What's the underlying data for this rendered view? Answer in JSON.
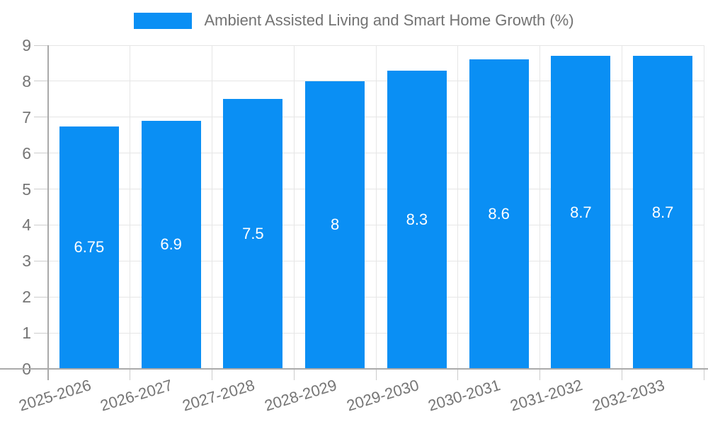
{
  "legend": {
    "label": "Ambient Assisted Living and Smart Home Growth (%)"
  },
  "chart_data": {
    "type": "bar",
    "title": "Ambient Assisted Living and Smart Home Growth (%)",
    "categories": [
      "2025-2026",
      "2026-2027",
      "2027-2028",
      "2028-2029",
      "2029-2030",
      "2030-2031",
      "2031-2032",
      "2032-2033"
    ],
    "values": [
      6.75,
      6.9,
      7.5,
      8,
      8.3,
      8.6,
      8.7,
      8.7
    ],
    "bar_labels": [
      "6.75",
      "6.9",
      "7.5",
      "8",
      "8.3",
      "8.6",
      "8.7",
      "8.7"
    ],
    "xlabel": "",
    "ylabel": "",
    "ylim": [
      0,
      9
    ],
    "ytick_step": 1,
    "ytick_labels": [
      "0",
      "1",
      "2",
      "3",
      "4",
      "5",
      "6",
      "7",
      "8",
      "9"
    ],
    "grid": true,
    "legend_position": "top",
    "colors": {
      "bar": "#0a8ff4",
      "grid": "#e6e6e6",
      "axis": "#aaaaaa",
      "tick": "#cccccc",
      "tick_text": "#757575",
      "legend_text": "#737373",
      "bar_label_text": "#ffffff",
      "background": "#ffffff"
    }
  }
}
